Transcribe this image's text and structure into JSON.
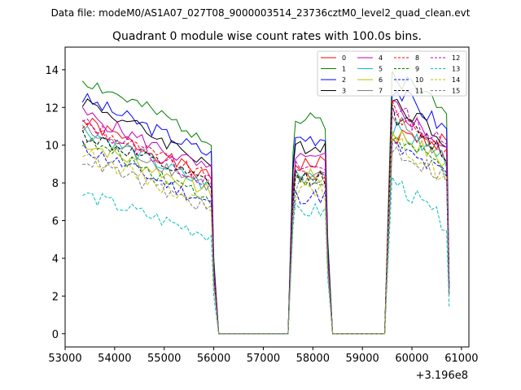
{
  "chart_data": {
    "type": "line",
    "suptitle": "Data file: modeM0/AS1A07_027T08_9000003514_23736cztM0_level2_quad_clean.evt",
    "title": "Quadrant 0 module wise count rates with 100.0s bins.",
    "xlabel": "",
    "ylabel": "",
    "x_offset_label": "+3.196e8",
    "xlim": [
      53000,
      61150
    ],
    "ylim": [
      -0.7,
      15.2
    ],
    "xticks": [
      53000,
      54000,
      55000,
      56000,
      57000,
      58000,
      59000,
      60000,
      61000
    ],
    "yticks": [
      0,
      2,
      4,
      6,
      8,
      10,
      12,
      14
    ],
    "legend_position": "top-right",
    "segments": [
      {
        "start": 53350,
        "end": 55950,
        "drop": [
          56000,
          56100
        ]
      },
      {
        "start": 57550,
        "end": 58250,
        "rise": [
          57500,
          57600
        ],
        "drop": [
          58300,
          58400
        ]
      },
      {
        "start": 59550,
        "end": 60700,
        "rise": [
          59450,
          59550
        ],
        "drop": [
          60700,
          60750
        ]
      }
    ],
    "gap_ranges": [
      [
        56100,
        57500
      ],
      [
        58400,
        59450
      ]
    ],
    "series": [
      {
        "name": "0",
        "color": "#ff0000",
        "dash": false,
        "levels": [
          11.3,
          8.2,
          9.0,
          10.5,
          10.2
        ],
        "seed": 1
      },
      {
        "name": "1",
        "color": "#008000",
        "dash": false,
        "levels": [
          13.5,
          10.3,
          11.3,
          13.8,
          12.1
        ],
        "seed": 2
      },
      {
        "name": "2",
        "color": "#0000ff",
        "dash": false,
        "levels": [
          12.5,
          9.5,
          10.4,
          13.2,
          10.8
        ],
        "seed": 3
      },
      {
        "name": "3",
        "color": "#000000",
        "dash": false,
        "levels": [
          12.4,
          9.0,
          10.0,
          12.6,
          10.3
        ],
        "seed": 4
      },
      {
        "name": "4",
        "color": "#bf00bf",
        "dash": false,
        "levels": [
          11.7,
          8.6,
          9.2,
          12.3,
          9.8
        ],
        "seed": 5
      },
      {
        "name": "5",
        "color": "#00bfbf",
        "dash": false,
        "levels": [
          10.9,
          7.7,
          8.6,
          11.0,
          9.2
        ],
        "seed": 6
      },
      {
        "name": "6",
        "color": "#bfbf00",
        "dash": false,
        "levels": [
          10.2,
          7.5,
          8.3,
          10.9,
          9.0
        ],
        "seed": 7
      },
      {
        "name": "7",
        "color": "#808080",
        "dash": false,
        "levels": [
          10.8,
          7.8,
          8.2,
          11.5,
          9.4
        ],
        "seed": 8
      },
      {
        "name": "8",
        "color": "#ff0000",
        "dash": true,
        "levels": [
          11.1,
          8.2,
          8.5,
          12.0,
          9.7
        ],
        "seed": 9
      },
      {
        "name": "9",
        "color": "#008000",
        "dash": true,
        "levels": [
          10.3,
          7.2,
          8.0,
          10.5,
          8.7
        ],
        "seed": 10
      },
      {
        "name": "10",
        "color": "#0000ff",
        "dash": true,
        "levels": [
          9.9,
          6.9,
          7.3,
          10.0,
          8.4
        ],
        "seed": 11
      },
      {
        "name": "11",
        "color": "#000000",
        "dash": true,
        "levels": [
          10.6,
          7.9,
          8.3,
          11.8,
          9.5
        ],
        "seed": 12
      },
      {
        "name": "12",
        "color": "#bf00bf",
        "dash": true,
        "levels": [
          11.2,
          8.0,
          8.8,
          12.2,
          9.9
        ],
        "seed": 13
      },
      {
        "name": "13",
        "color": "#00bfbf",
        "dash": true,
        "levels": [
          7.4,
          5.2,
          6.5,
          8.3,
          5.8
        ],
        "seed": 14
      },
      {
        "name": "14",
        "color": "#bfbf00",
        "dash": true,
        "levels": [
          9.6,
          6.8,
          7.5,
          10.4,
          8.2
        ],
        "seed": 15
      },
      {
        "name": "15",
        "color": "#808080",
        "dash": true,
        "levels": [
          9.3,
          6.6,
          7.9,
          9.9,
          8.3
        ],
        "seed": 16
      }
    ]
  }
}
